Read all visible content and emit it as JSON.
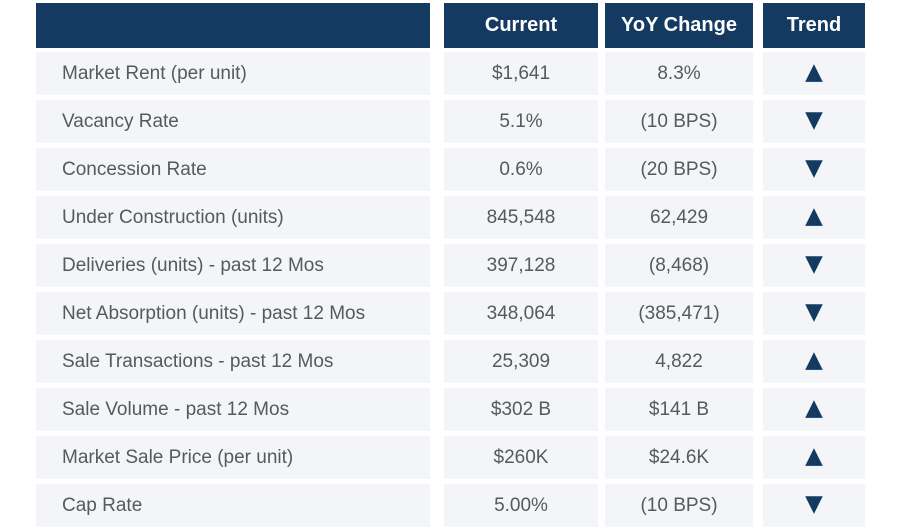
{
  "chart_data": {
    "type": "table",
    "header": {
      "label": "",
      "current": "Current",
      "yoy": "YoY Change",
      "trend": "Trend"
    },
    "rows": [
      {
        "label": "Market Rent (per unit)",
        "current": "$1,641",
        "yoy": "8.3%",
        "trend": "up",
        "trend_glyph": "▲"
      },
      {
        "label": "Vacancy Rate",
        "current": "5.1%",
        "yoy": "(10 BPS)",
        "trend": "down",
        "trend_glyph": "▼"
      },
      {
        "label": "Concession Rate",
        "current": "0.6%",
        "yoy": "(20 BPS)",
        "trend": "down",
        "trend_glyph": "▼"
      },
      {
        "label": "Under Construction (units)",
        "current": "845,548",
        "yoy": "62,429",
        "trend": "up",
        "trend_glyph": "▲"
      },
      {
        "label": "Deliveries (units) - past 12 Mos",
        "current": "397,128",
        "yoy": "(8,468)",
        "trend": "down",
        "trend_glyph": "▼"
      },
      {
        "label": "Net Absorption (units) - past 12 Mos",
        "current": "348,064",
        "yoy": "(385,471)",
        "trend": "down",
        "trend_glyph": "▼"
      },
      {
        "label": "Sale Transactions - past 12 Mos",
        "current": "25,309",
        "yoy": "4,822",
        "trend": "up",
        "trend_glyph": "▲"
      },
      {
        "label": "Sale Volume - past 12 Mos",
        "current": "$302 B",
        "yoy": "$141 B",
        "trend": "up",
        "trend_glyph": "▲"
      },
      {
        "label": "Market Sale Price (per unit)",
        "current": "$260K",
        "yoy": "$24.6K",
        "trend": "up",
        "trend_glyph": "▲"
      },
      {
        "label": "Cap Rate",
        "current": "5.00%",
        "yoy": "(10 BPS)",
        "trend": "down",
        "trend_glyph": "▼"
      }
    ]
  },
  "colors": {
    "header_bg": "#143A61",
    "row_bg": "#F4F5F8",
    "header_text": "#FFFFFF",
    "body_text": "#56595D",
    "trend_triangle": "#143A61"
  }
}
